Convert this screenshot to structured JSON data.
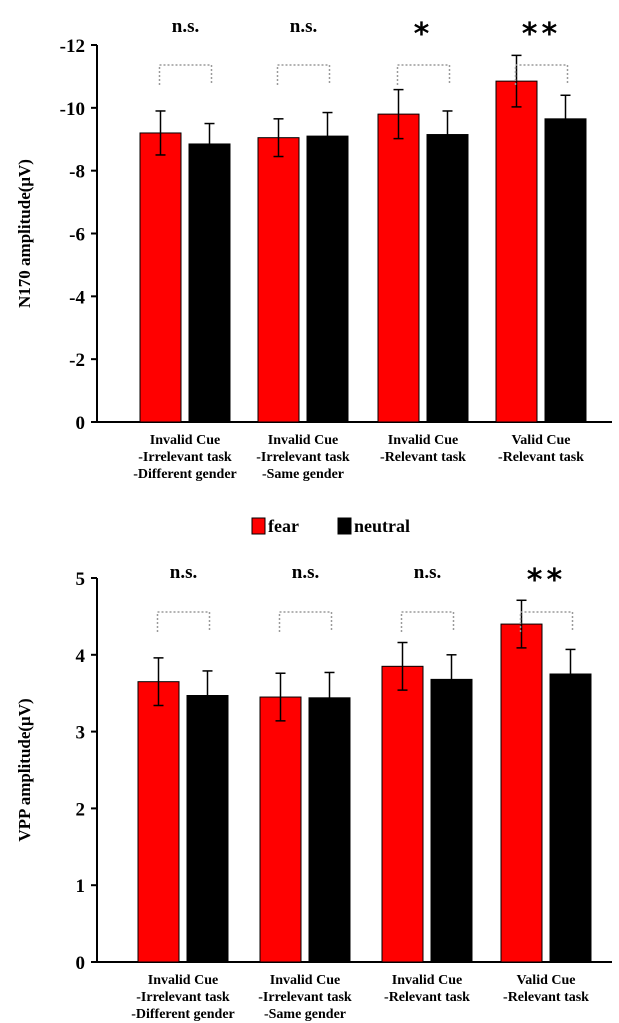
{
  "colors": {
    "fear": "#ff0000",
    "neutral": "#000000",
    "bracket": "#9a9a9a"
  },
  "legend": [
    {
      "key": "fear",
      "label": "fear"
    },
    {
      "key": "neutral",
      "label": "neutral"
    }
  ],
  "chart_data": [
    {
      "type": "bar",
      "ylabel": "N170 amplitude(μV)",
      "ylim": [
        0,
        -12
      ],
      "yticks": [
        "0",
        "-2",
        "-4",
        "-6",
        "-8",
        "-10",
        "-12"
      ],
      "categories": [
        [
          "Invalid Cue",
          "-Irrelevant task",
          "-Different gender"
        ],
        [
          "Invalid Cue",
          "-Irrelevant task",
          "-Same gender"
        ],
        [
          "Invalid Cue",
          "-Relevant task"
        ],
        [
          "Valid Cue",
          "-Relevant task"
        ]
      ],
      "series": [
        {
          "name": "fear",
          "values": [
            -9.2,
            -9.05,
            -9.8,
            -10.85
          ],
          "errors": [
            0.7,
            0.6,
            0.78,
            0.82
          ]
        },
        {
          "name": "neutral",
          "values": [
            -8.85,
            -9.1,
            -9.15,
            -9.65
          ],
          "errors": [
            0.65,
            0.75,
            0.75,
            0.75
          ]
        }
      ],
      "significance": [
        "n.s.",
        "n.s.",
        "*",
        "**"
      ]
    },
    {
      "type": "bar",
      "ylabel": "VPP amplitude(μV)",
      "ylim": [
        0,
        5
      ],
      "yticks": [
        "0",
        "1",
        "2",
        "3",
        "4",
        "5"
      ],
      "categories": [
        [
          "Invalid Cue",
          "-Irrelevant task",
          "-Different gender"
        ],
        [
          "Invalid Cue",
          "-Irrelevant task",
          "-Same gender"
        ],
        [
          "Invalid Cue",
          "-Relevant task"
        ],
        [
          "Valid Cue",
          "-Relevant task"
        ]
      ],
      "series": [
        {
          "name": "fear",
          "values": [
            3.65,
            3.45,
            3.85,
            4.4
          ],
          "errors": [
            0.31,
            0.31,
            0.31,
            0.31
          ]
        },
        {
          "name": "neutral",
          "values": [
            3.47,
            3.44,
            3.68,
            3.75
          ],
          "errors": [
            0.32,
            0.33,
            0.32,
            0.32
          ]
        }
      ],
      "significance": [
        "n.s.",
        "n.s.",
        "n.s.",
        "**"
      ]
    }
  ]
}
